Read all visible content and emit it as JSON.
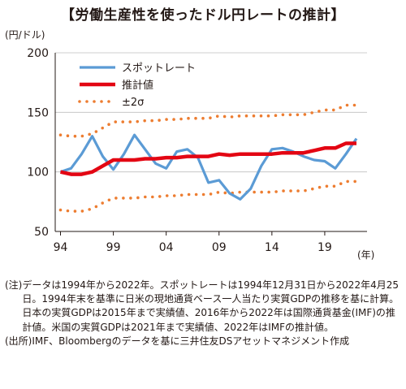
{
  "title": "【労働生産性を使ったドル円レートの推計】",
  "y_unit": "(円/ドル)",
  "x_unit": "(年)",
  "colors": {
    "spot": "#5b9bd5",
    "estimate": "#e30613",
    "sigma": "#ed7d31",
    "axis": "#231815",
    "grid": "#bfbfbf"
  },
  "chart_data": {
    "type": "line",
    "title": "【労働生産性を使ったドル円レートの推計】",
    "ylabel": "(円/ドル)",
    "xlabel": "(年)",
    "ylim": [
      50,
      200
    ],
    "xlim": [
      1993.5,
      2023
    ],
    "yticks": [
      50,
      100,
      150,
      200
    ],
    "xticks": [
      1994,
      1999,
      2004,
      2009,
      2014,
      2019
    ],
    "xtick_labels": [
      "94",
      "99",
      "04",
      "09",
      "14",
      "19"
    ],
    "grid": true,
    "legend_position": "top-left",
    "series": [
      {
        "name": "スポットレート",
        "style": "solid-thin",
        "x": [
          1994,
          1995,
          1996,
          1997,
          1998,
          1999,
          2000,
          2001,
          2002,
          2003,
          2004,
          2005,
          2006,
          2007,
          2008,
          2009,
          2010,
          2011,
          2012,
          2013,
          2014,
          2015,
          2016,
          2017,
          2018,
          2019,
          2020,
          2021,
          2022
        ],
        "y": [
          100,
          103,
          115,
          130,
          113,
          102,
          115,
          131,
          119,
          107,
          103,
          117,
          119,
          112,
          91,
          93,
          82,
          77,
          86,
          105,
          119,
          120,
          117,
          113,
          110,
          109,
          103,
          115,
          128
        ]
      },
      {
        "name": "推計値",
        "style": "solid-thick",
        "x": [
          1994,
          1995,
          1996,
          1997,
          1998,
          1999,
          2000,
          2001,
          2002,
          2003,
          2004,
          2005,
          2006,
          2007,
          2008,
          2009,
          2010,
          2011,
          2012,
          2013,
          2014,
          2015,
          2016,
          2017,
          2018,
          2019,
          2020,
          2021,
          2022
        ],
        "y": [
          100,
          98,
          98,
          100,
          105,
          110,
          110,
          110,
          111,
          111,
          112,
          112,
          113,
          113,
          113,
          115,
          114,
          115,
          115,
          115,
          115,
          116,
          116,
          116,
          118,
          120,
          120,
          124,
          124
        ]
      },
      {
        "name": "±2σ",
        "style": "dotted",
        "x": [
          1994,
          1995,
          1996,
          1997,
          1998,
          1999,
          2000,
          2001,
          2002,
          2003,
          2004,
          2005,
          2006,
          2007,
          2008,
          2009,
          2010,
          2011,
          2012,
          2013,
          2014,
          2015,
          2016,
          2017,
          2018,
          2019,
          2020,
          2021,
          2022
        ],
        "y": [
          131,
          130,
          130,
          132,
          137,
          142,
          142,
          142,
          143,
          143,
          144,
          144,
          145,
          145,
          145,
          147,
          146,
          147,
          147,
          147,
          147,
          148,
          148,
          148,
          150,
          152,
          152,
          156,
          156
        ]
      },
      {
        "name": "",
        "style": "dotted",
        "x": [
          1994,
          1995,
          1996,
          1997,
          1998,
          1999,
          2000,
          2001,
          2002,
          2003,
          2004,
          2005,
          2006,
          2007,
          2008,
          2009,
          2010,
          2011,
          2012,
          2013,
          2014,
          2015,
          2016,
          2017,
          2018,
          2019,
          2020,
          2021,
          2022
        ],
        "y": [
          68,
          67,
          67,
          69,
          74,
          78,
          78,
          78,
          79,
          79,
          80,
          80,
          81,
          81,
          81,
          83,
          82,
          83,
          83,
          83,
          83,
          84,
          84,
          84,
          86,
          88,
          88,
          92,
          92
        ]
      }
    ]
  },
  "legend": [
    {
      "label": "スポットレート",
      "style": "solid-thin"
    },
    {
      "label": "推計値",
      "style": "solid-thick"
    },
    {
      "label": "±2σ",
      "style": "dotted"
    }
  ],
  "notes": [
    {
      "head": "(注)",
      "body": "データは1994年から2022年。スポットレートは1994年12月31日から2022年4月25日。1994年末を基準に日米の現地通貨ベース一人当たり実質GDPの推移を基に計算。日本の実質GDPは2015年まで実績値、2016年から2022年は国際通貨基金(IMF)の推計値。米国の実質GDPは2021年まで実績値、2022年はIMFの推計値。"
    },
    {
      "head": "(出所)",
      "body": "IMF、Bloombergのデータを基に三井住友DSアセットマネジメント作成"
    }
  ]
}
